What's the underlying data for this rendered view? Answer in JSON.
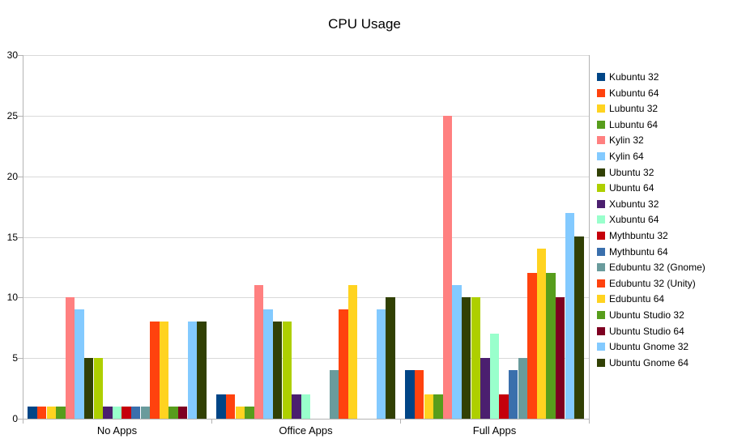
{
  "title": "CPU Usage",
  "chart_data": {
    "type": "bar",
    "title": "CPU Usage",
    "categories": [
      "No Apps",
      "Office Apps",
      "Full Apps"
    ],
    "series": [
      {
        "name": "Kubuntu 32",
        "color": "#004586",
        "values": [
          1,
          2,
          4
        ]
      },
      {
        "name": "Kubuntu 64",
        "color": "#ff420e",
        "values": [
          1,
          2,
          4
        ]
      },
      {
        "name": "Lubuntu 32",
        "color": "#ffd320",
        "values": [
          1,
          1,
          2
        ]
      },
      {
        "name": "Lubuntu 64",
        "color": "#579d1c",
        "values": [
          1,
          1,
          2
        ]
      },
      {
        "name": "Kylin 32",
        "color": "#ff8080",
        "values": [
          10,
          11,
          25
        ]
      },
      {
        "name": "Kylin 64",
        "color": "#83caff",
        "values": [
          9,
          9,
          11
        ]
      },
      {
        "name": "Ubuntu 32",
        "color": "#314004",
        "values": [
          5,
          8,
          10
        ]
      },
      {
        "name": "Ubuntu 64",
        "color": "#aecf00",
        "values": [
          5,
          8,
          10
        ]
      },
      {
        "name": "Xubuntu 32",
        "color": "#4b1f6f",
        "values": [
          1,
          2,
          5
        ]
      },
      {
        "name": "Xubuntu 64",
        "color": "#99ffcc",
        "values": [
          1,
          2,
          7
        ]
      },
      {
        "name": "Mythbuntu 32",
        "color": "#c5000b",
        "values": [
          1,
          0,
          2
        ]
      },
      {
        "name": "Mythbuntu 64",
        "color": "#3a6fac",
        "values": [
          1,
          0,
          4
        ]
      },
      {
        "name": "Edubuntu 32 (Gnome)",
        "color": "#699b9c",
        "values": [
          1,
          4,
          5
        ]
      },
      {
        "name": "Edubuntu 32 (Unity)",
        "color": "#ff420e",
        "values": [
          8,
          9,
          12
        ]
      },
      {
        "name": "Edubuntu 64",
        "color": "#ffd320",
        "values": [
          8,
          11,
          14
        ]
      },
      {
        "name": "Ubuntu Studio 32",
        "color": "#579d1c",
        "values": [
          1,
          0,
          12
        ]
      },
      {
        "name": "Ubuntu Studio 64",
        "color": "#7e0021",
        "values": [
          1,
          0,
          10
        ]
      },
      {
        "name": "Ubuntu Gnome 32",
        "color": "#83caff",
        "values": [
          8,
          9,
          17
        ]
      },
      {
        "name": "Ubuntu Gnome 64",
        "color": "#314004",
        "values": [
          8,
          10,
          15
        ]
      }
    ],
    "ylim": [
      0,
      30
    ],
    "yticks": [
      0,
      5,
      10,
      15,
      20,
      25,
      30
    ],
    "grid": "horizontal",
    "legend_position": "right",
    "grid_color": "#d9d9d9",
    "axis_color": "#b3b3b3"
  }
}
